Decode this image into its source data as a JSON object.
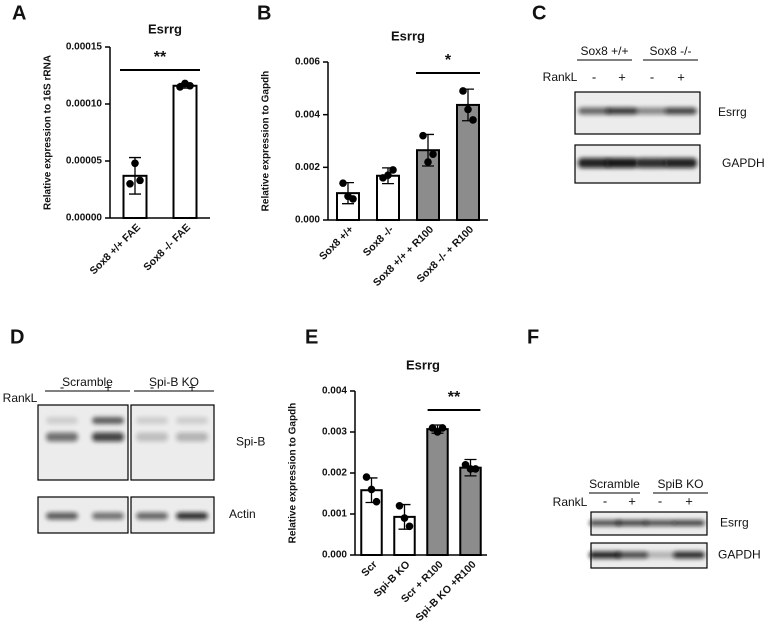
{
  "panels": [
    "A",
    "B",
    "C",
    "D",
    "E",
    "F"
  ],
  "chart_data": [
    {
      "type": "bar",
      "title": "Esrrg",
      "y_label": "Relative expression to 16S rRNA",
      "categories": [
        "Sox8 +/+ FAE",
        "Sox8 -/- FAE"
      ],
      "values": [
        3.7e-05,
        0.000116
      ],
      "errors": [
        1.6e-05,
        2e-06
      ],
      "points": [
        [
          3e-05,
          4.8e-05,
          3.3e-05
        ],
        [
          0.000115,
          0.000118,
          0.000116
        ]
      ],
      "colors": [
        "#ffffff",
        "#ffffff"
      ],
      "ylim": [
        0,
        0.00015
      ],
      "yticks": [
        {
          "value": 0,
          "label": "0.00000"
        },
        {
          "value": 5e-05,
          "label": "0.00005"
        },
        {
          "value": 0.0001,
          "label": "0.00010"
        },
        {
          "value": 0.00015,
          "label": "0.00015"
        }
      ],
      "annotation": "**"
    },
    {
      "type": "bar",
      "title": "Esrrg",
      "y_label": "Relative expression to Gapdh",
      "categories": [
        "Sox8 +/+",
        "Sox8 -/-",
        "Sox8 +/+ + R100",
        "Sox8 -/- + R100"
      ],
      "values": [
        0.00102,
        0.00168,
        0.00265,
        0.00437
      ],
      "errors": [
        0.0004,
        0.0003,
        0.0006,
        0.0006
      ],
      "points": [
        [
          0.0014,
          0.0009,
          0.0008
        ],
        [
          0.0016,
          0.0017,
          0.0019
        ],
        [
          0.0032,
          0.0022,
          0.0025
        ],
        [
          0.0049,
          0.0042,
          0.0038
        ]
      ],
      "colors": [
        "#ffffff",
        "#ffffff",
        "#8c8c8c",
        "#8c8c8c"
      ],
      "ylim": [
        0,
        0.006
      ],
      "yticks": [
        {
          "value": 0,
          "label": "0.000"
        },
        {
          "value": 0.002,
          "label": "0.002"
        },
        {
          "value": 0.004,
          "label": "0.004"
        },
        {
          "value": 0.006,
          "label": "0.006"
        }
      ],
      "annotation": "*"
    },
    {
      "type": "bar",
      "title": "Esrrg",
      "y_label": "Relative expression to Gapdh",
      "categories": [
        "Scr",
        "Spi-B KO",
        "Scr + R100",
        "Spi-B KO +R100"
      ],
      "values": [
        0.00158,
        0.00093,
        0.00307,
        0.00213
      ],
      "errors": [
        0.0003,
        0.0003,
        0.0001,
        0.0002
      ],
      "points": [
        [
          0.0019,
          0.0016,
          0.0013
        ],
        [
          0.0012,
          0.0009,
          0.0007
        ],
        [
          0.0031,
          0.003,
          0.0031
        ],
        [
          0.0022,
          0.0021,
          0.0021
        ]
      ],
      "colors": [
        "#ffffff",
        "#ffffff",
        "#8c8c8c",
        "#8c8c8c"
      ],
      "ylim": [
        0,
        0.004
      ],
      "yticks": [
        {
          "value": 0,
          "label": "0.000"
        },
        {
          "value": 0.001,
          "label": "0.001"
        },
        {
          "value": 0.002,
          "label": "0.002"
        },
        {
          "value": 0.003,
          "label": "0.003"
        },
        {
          "value": 0.004,
          "label": "0.004"
        }
      ],
      "annotation": "**"
    }
  ],
  "blots": [
    {
      "groups": [
        "Sox8 +/+",
        "Sox8 -/-"
      ],
      "treatment": "RankL",
      "lanes": [
        "-",
        "+",
        "-",
        "+"
      ],
      "bands": [
        "Esrrg",
        "GAPDH"
      ]
    },
    {
      "groups": [
        "Scramble",
        "Spi-B KO"
      ],
      "treatment": "RankL",
      "lanes": [
        "-",
        "+",
        "-",
        "+"
      ],
      "bands": [
        "Spi-B",
        "Actin"
      ]
    },
    {
      "groups": [
        "Scramble",
        "SpiB KO"
      ],
      "treatment": "RankL",
      "lanes": [
        "-",
        "+",
        "-",
        "+"
      ],
      "bands": [
        "Esrrg",
        "GAPDH"
      ]
    }
  ]
}
